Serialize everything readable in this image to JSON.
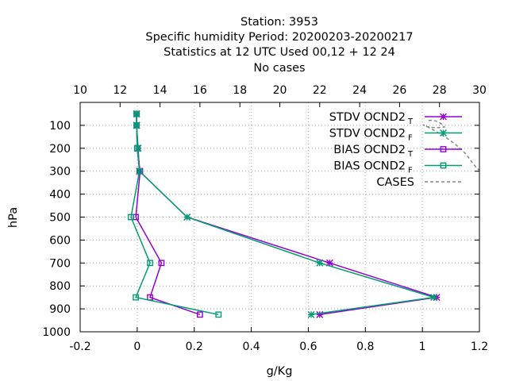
{
  "chart_data": {
    "type": "line",
    "title_lines": [
      "Station:     3953",
      "Specific humidity  Period: 20200203-20200217",
      "Statistics at 12 UTC  Used  00,12  + 12 24",
      "No cases"
    ],
    "xlabel": "g/Kg",
    "ylabel": "hPa",
    "x2label": "",
    "xlim": [
      -0.2,
      1.2
    ],
    "ylim": [
      1000,
      0
    ],
    "x2lim": [
      10,
      30
    ],
    "x_ticks": [
      "-0.2",
      "0",
      "0.2",
      "0.4",
      "0.6",
      "0.8",
      "1",
      "1.2"
    ],
    "x_tick_values": [
      -0.2,
      0,
      0.2,
      0.4,
      0.6,
      0.8,
      1.0,
      1.2
    ],
    "y_ticks": [
      "100",
      "200",
      "300",
      "400",
      "500",
      "600",
      "700",
      "800",
      "900",
      "1000"
    ],
    "y_tick_values": [
      100,
      200,
      300,
      400,
      500,
      600,
      700,
      800,
      900,
      1000
    ],
    "x2_ticks": [
      "10",
      "12",
      "14",
      "16",
      "18",
      "20",
      "22",
      "24",
      "26",
      "28",
      "30"
    ],
    "x2_tick_values": [
      10,
      12,
      14,
      16,
      18,
      20,
      22,
      24,
      26,
      28,
      30
    ],
    "grid": true,
    "legend_position": "top-right",
    "series": [
      {
        "name": "STDV OCND2",
        "subscript": "T",
        "color": "#9400d3",
        "marker": "star",
        "points": [
          [
            -0.002,
            50
          ],
          [
            -0.002,
            100
          ],
          [
            0.003,
            200
          ],
          [
            0.008,
            300
          ],
          [
            0.175,
            500
          ],
          [
            0.675,
            700
          ],
          [
            1.05,
            850
          ],
          [
            0.64,
            925
          ]
        ]
      },
      {
        "name": "STDV OCND2",
        "subscript": "F",
        "color": "#009e73",
        "marker": "star",
        "points": [
          [
            -0.002,
            50
          ],
          [
            -0.002,
            100
          ],
          [
            0.003,
            200
          ],
          [
            0.008,
            300
          ],
          [
            0.175,
            500
          ],
          [
            0.64,
            700
          ],
          [
            1.04,
            850
          ],
          [
            0.61,
            925
          ]
        ]
      },
      {
        "name": "BIAS OCND2",
        "subscript": "T",
        "color": "#9400d3",
        "marker": "square",
        "points": [
          [
            -0.002,
            50
          ],
          [
            -0.002,
            100
          ],
          [
            0.0,
            200
          ],
          [
            0.01,
            300
          ],
          [
            -0.005,
            500
          ],
          [
            0.085,
            700
          ],
          [
            0.045,
            850
          ],
          [
            0.22,
            925
          ]
        ]
      },
      {
        "name": "BIAS OCND2",
        "subscript": "F",
        "color": "#009e73",
        "marker": "square",
        "points": [
          [
            -0.002,
            50
          ],
          [
            -0.002,
            100
          ],
          [
            0.0,
            200
          ],
          [
            0.008,
            300
          ],
          [
            -0.022,
            500
          ],
          [
            0.045,
            700
          ],
          [
            -0.005,
            850
          ],
          [
            0.285,
            925
          ]
        ]
      },
      {
        "name": "CASES",
        "subscript": "",
        "color": "#888888",
        "marker": "none",
        "dashed": true,
        "points": []
      }
    ]
  }
}
